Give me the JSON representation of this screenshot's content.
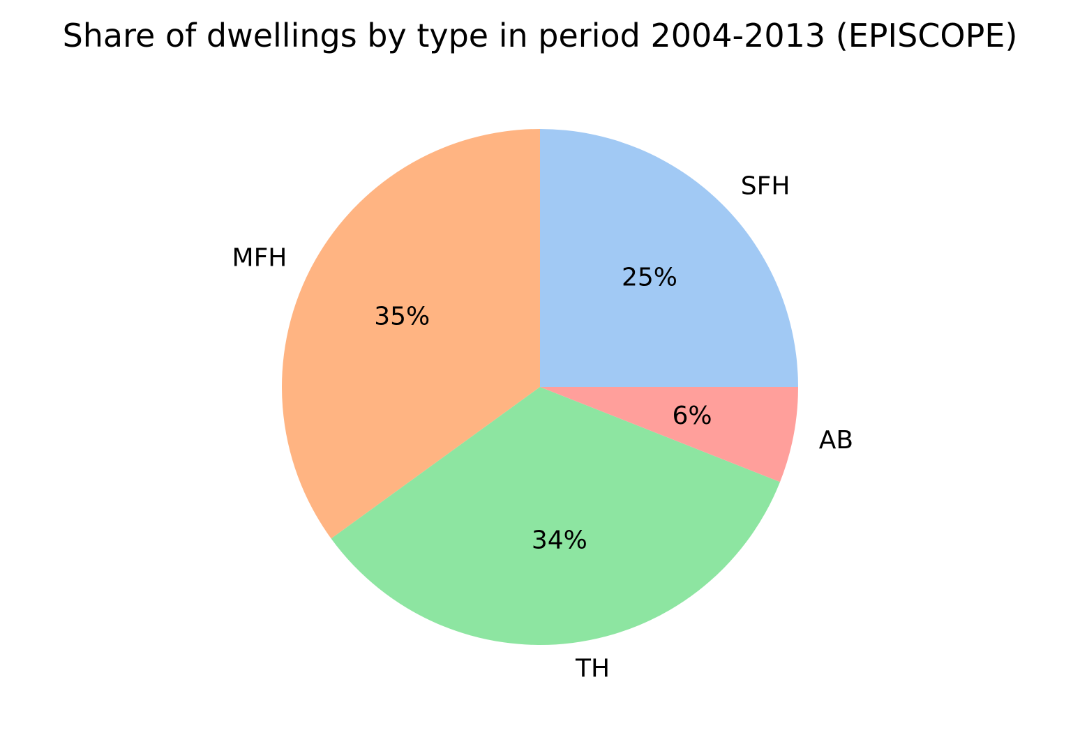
{
  "chart_data": {
    "type": "pie",
    "title": "Share of dwellings by type in period 2004-2013 (EPISCOPE)",
    "slices": [
      {
        "label": "SFH",
        "value": 25,
        "pct_label": "25%",
        "color": "#a1c9f4"
      },
      {
        "label": "MFH",
        "value": 35,
        "pct_label": "35%",
        "color": "#ffb482"
      },
      {
        "label": "TH",
        "value": 34,
        "pct_label": "34%",
        "color": "#8de5a1"
      },
      {
        "label": "AB",
        "value": 6,
        "pct_label": "6%",
        "color": "#ff9f9b"
      }
    ],
    "start_angle_deg": 0,
    "direction": "counterclockwise",
    "legend": "none"
  }
}
